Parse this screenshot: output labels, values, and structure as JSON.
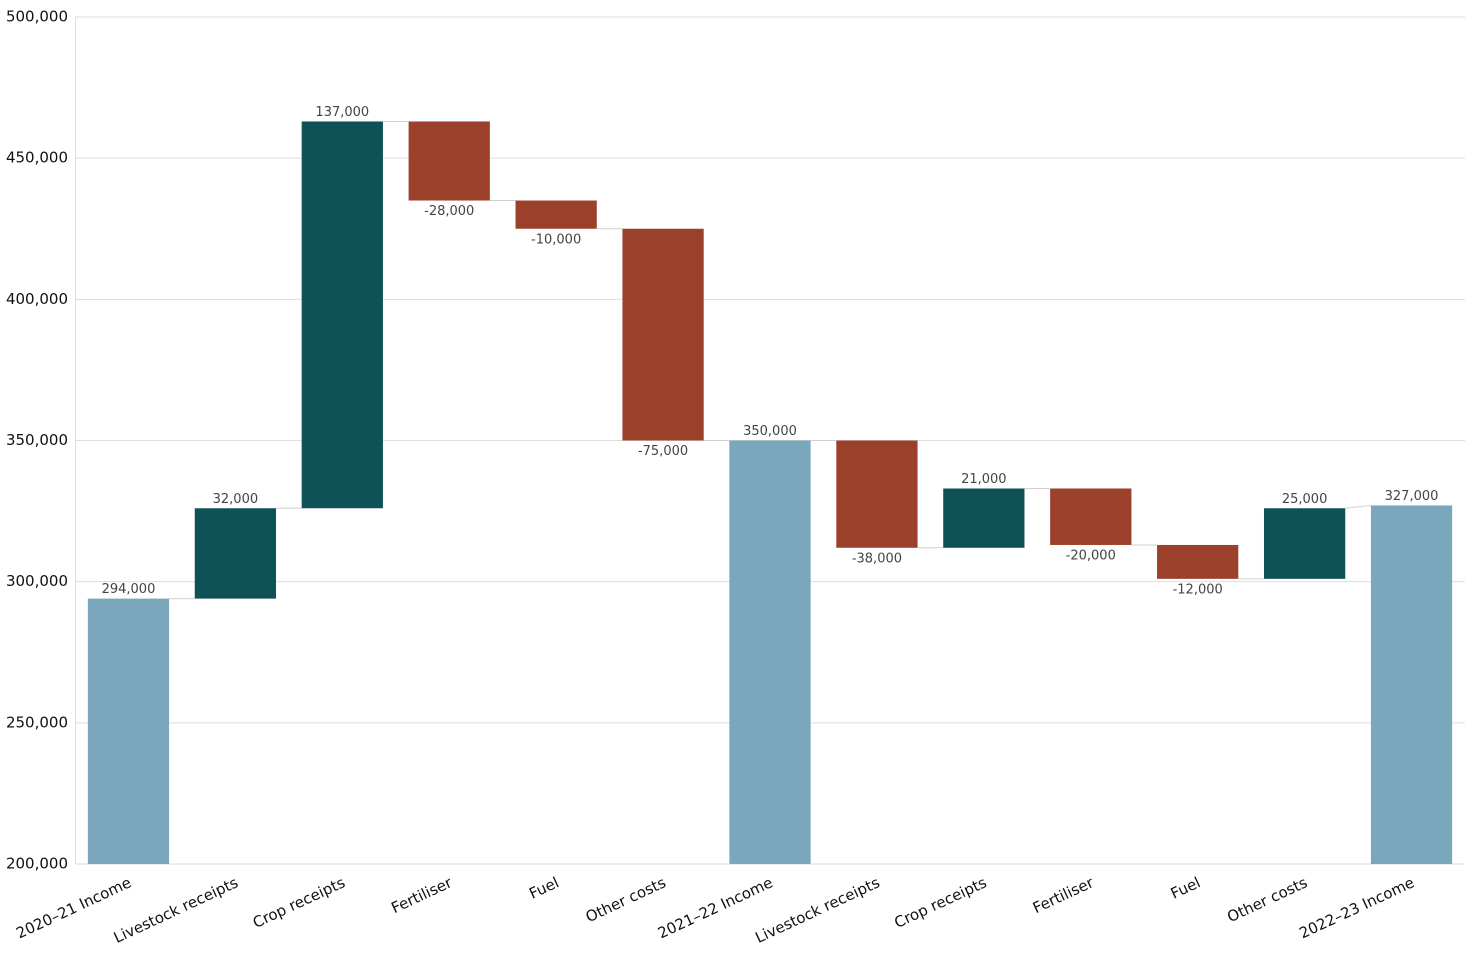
{
  "chart_data": {
    "type": "waterfall",
    "categories": [
      "2020–21 Income",
      "Livestock receipts",
      "Crop receipts",
      "Fertiliser",
      "Fuel",
      "Other costs",
      "2021–22 Income",
      "Livestock receipts",
      "Crop receipts",
      "Fertiliser",
      "Fuel",
      "Other costs",
      "2022–23 Income"
    ],
    "values": [
      294000,
      32000,
      137000,
      -28000,
      -10000,
      -75000,
      350000,
      -38000,
      21000,
      -20000,
      -12000,
      25000,
      327000
    ],
    "value_labels": [
      "294,000",
      "32,000",
      "137,000",
      "-28,000",
      "-10,000",
      "-75,000",
      "350,000",
      "-38,000",
      "21,000",
      "-20,000",
      "-12,000",
      "25,000",
      "327,000"
    ],
    "totals": [
      0,
      6,
      12
    ],
    "colors": {
      "total": "#7ba7bc",
      "increase": "#0e5258",
      "decrease": "#9b412b"
    },
    "ylim": [
      200000,
      500000
    ],
    "yticks": [
      {
        "value": 200000,
        "label": "200,000"
      },
      {
        "value": 250000,
        "label": "250,000"
      },
      {
        "value": 300000,
        "label": "300,000"
      },
      {
        "value": 350000,
        "label": "350,000"
      },
      {
        "value": 400000,
        "label": "400,000"
      },
      {
        "value": 450000,
        "label": "450,000"
      },
      {
        "value": 500000,
        "label": "500,000"
      }
    ],
    "grid": true
  }
}
